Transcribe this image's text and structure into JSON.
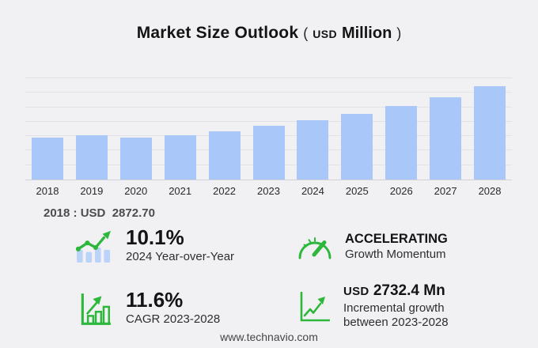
{
  "title": {
    "main": "Market Size Outlook",
    "open_paren": "(",
    "currency": "USD",
    "unit": "Million",
    "close_paren": ")"
  },
  "chart_data": {
    "type": "bar",
    "title": "Market Size Outlook (USD Million)",
    "categories": [
      "2018",
      "2019",
      "2020",
      "2021",
      "2022",
      "2023",
      "2024",
      "2025",
      "2026",
      "2027",
      "2028"
    ],
    "values": [
      2872.7,
      3090,
      2890,
      3090,
      3360,
      3736.4,
      4113.8,
      4553.9,
      5073.1,
      5692.0,
      6468.8
    ],
    "annotation": "2018 : USD 2872.70",
    "xlabel": "",
    "ylabel": "",
    "ylim": [
      0,
      7000
    ],
    "gridline_step": 1000,
    "grid": true,
    "legend": "none",
    "bar_color": "#a9c7f8"
  },
  "callout_2018": "2018 : USD  2872.70",
  "stats": {
    "yoy": {
      "value": "10.1%",
      "label": "2024 Year-over-Year",
      "icon": "trend-bars-icon"
    },
    "momentum": {
      "value": "ACCELERATING",
      "label": "Growth Momentum",
      "icon": "gauge-icon"
    },
    "cagr": {
      "value": "11.6%",
      "label": "CAGR 2023-2028",
      "icon": "bar-growth-icon"
    },
    "incremental": {
      "value_currency": "USD",
      "value": "2732.4 Mn",
      "label": "Incremental growth between 2023-2028",
      "icon": "line-growth-icon"
    }
  },
  "footer": {
    "website": "www.technavio.com"
  },
  "colors": {
    "background": "#f1f1f4",
    "bar": "#a9c7f8",
    "icon_bar_blue": "#bcd3f9",
    "accent_green": "#2db83c",
    "gridline": "#e2e2e6",
    "axis_line": "#d2d2d7",
    "heading_text": "#141414",
    "label_text": "#2e2e2e"
  }
}
